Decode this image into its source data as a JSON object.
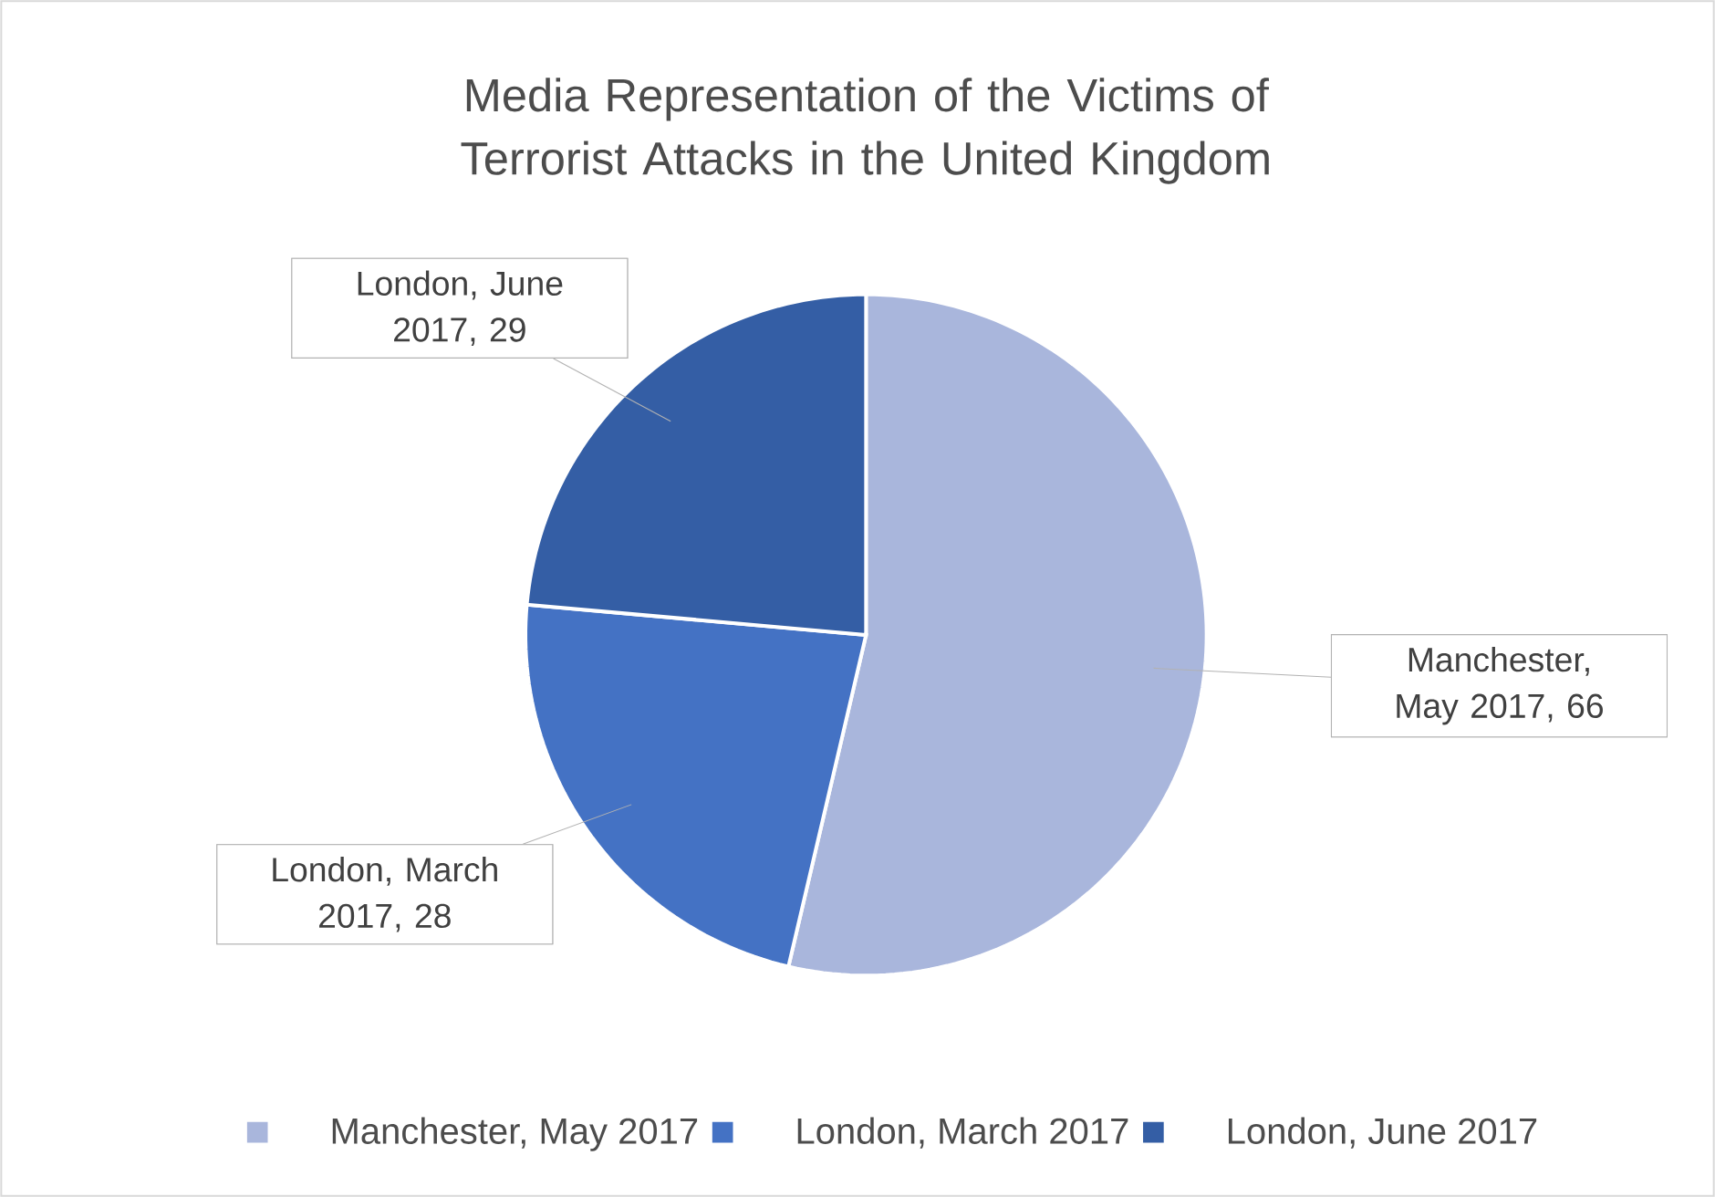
{
  "chart_data": {
    "type": "pie",
    "title": "Media Representation of the Victims of Terrorist Attacks in the United Kingdom",
    "categories": [
      "Manchester, May 2017",
      "London, March 2017",
      "London, June 2017"
    ],
    "values": [
      66,
      28,
      29
    ],
    "colors": [
      "#a9b6dc",
      "#4472c4",
      "#345ea5"
    ],
    "value_labels": [
      "Manchester, May 2017, 66",
      "London, March 2017, 28",
      "London, June 2017, 29"
    ],
    "legend": "bottom"
  }
}
